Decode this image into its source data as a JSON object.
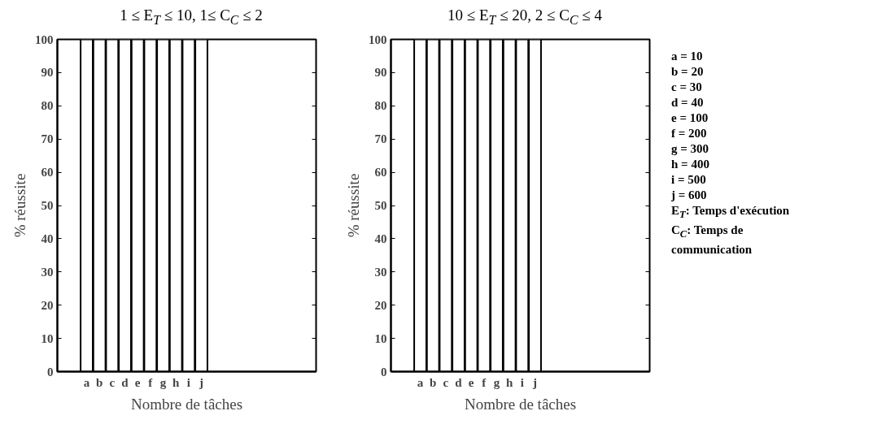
{
  "chart_data": [
    {
      "type": "bar",
      "title": "1 ≤ E$_{T}$ ≤ 10, 1≤ C$_{C}$ ≤ 2",
      "xlabel": "Nombre de tâches",
      "ylabel": "% réussite",
      "categories": [
        "a",
        "b",
        "c",
        "d",
        "e",
        "f",
        "g",
        "h",
        "i",
        "j"
      ],
      "values": [
        100,
        100,
        100,
        100,
        100,
        100,
        100,
        100,
        100,
        100
      ],
      "color": "#ffffff",
      "ylim": [
        0,
        100
      ],
      "yticks": [
        0,
        10,
        20,
        30,
        40,
        50,
        60,
        70,
        80,
        90,
        100
      ],
      "grid": false
    },
    {
      "type": "bar",
      "title": "10 ≤ E$_{T}$ ≤ 20, 2 ≤ C$_{C}$ ≤ 4",
      "xlabel": "Nombre de tâches",
      "ylabel": "% réussite",
      "categories": [
        "a",
        "b",
        "c",
        "d",
        "e",
        "f",
        "g",
        "h",
        "i",
        "j"
      ],
      "values": [
        100,
        100,
        100,
        100,
        100,
        100,
        100,
        100,
        100,
        100
      ],
      "color": "#ffffff",
      "ylim": [
        0,
        100
      ],
      "yticks": [
        0,
        10,
        20,
        30,
        40,
        50,
        60,
        70,
        80,
        90,
        100
      ],
      "grid": false,
      "annotations": [
        "a = 10",
        "b = 20",
        "c = 30",
        "d = 40",
        "e = 100",
        "f = 200",
        "g = 300",
        "h = 400",
        "i = 500",
        "j = 600",
        "E$_{T}$: Temps d'exécution",
        "C$_{C}$: Temps de communication"
      ]
    }
  ]
}
